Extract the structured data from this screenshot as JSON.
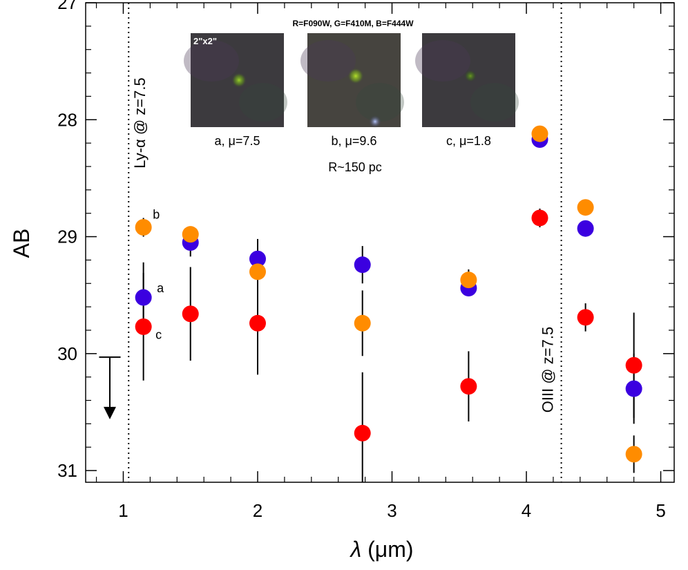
{
  "chart_data": {
    "type": "scatter",
    "xlabel_sym": "λ",
    "xlabel_unit": " (μm)",
    "ylabel": "AB",
    "xlim": [
      0.72,
      5.1
    ],
    "ylim": [
      27,
      31.1
    ],
    "y_inverted": true,
    "xticks": [
      1,
      2,
      3,
      4,
      5
    ],
    "yticks": [
      27,
      28,
      29,
      30,
      31
    ],
    "vlines": [
      {
        "x": 1.04,
        "label": "Ly-α @ z=7.5",
        "style": "dotted"
      },
      {
        "x": 4.26,
        "label": "OIII @ z=7.5",
        "style": "dotted"
      }
    ],
    "upper_limit": {
      "x": 0.9,
      "y": 30.03,
      "xhalf": 0.08,
      "arrow_to": 30.55
    },
    "series": [
      {
        "name": "a",
        "color": "#3b00e0",
        "points": [
          {
            "x": 1.15,
            "y": 29.52,
            "err": 0.3
          },
          {
            "x": 1.5,
            "y": 29.05,
            "err": 0.12
          },
          {
            "x": 2.0,
            "y": 29.19,
            "err": 0.17
          },
          {
            "x": 2.78,
            "y": 29.24,
            "err": 0.16
          },
          {
            "x": 3.57,
            "y": 29.44,
            "err": 0.07
          },
          {
            "x": 4.1,
            "y": 28.17,
            "err": 0.06
          },
          {
            "x": 4.44,
            "y": 28.93,
            "err": 0.06
          },
          {
            "x": 4.8,
            "y": 30.3,
            "err": 0.3
          }
        ]
      },
      {
        "name": "b",
        "color": "#ff8c00",
        "points": [
          {
            "x": 1.15,
            "y": 28.92,
            "err": 0.08
          },
          {
            "x": 1.5,
            "y": 28.98,
            "err": 0.06
          },
          {
            "x": 2.0,
            "y": 29.3,
            "err": 0.14
          },
          {
            "x": 2.78,
            "y": 29.74,
            "err": 0.28
          },
          {
            "x": 3.57,
            "y": 29.37,
            "err": 0.09
          },
          {
            "x": 4.1,
            "y": 28.12,
            "err": 0.06
          },
          {
            "x": 4.44,
            "y": 28.75,
            "err": 0.05
          },
          {
            "x": 4.8,
            "y": 30.86,
            "err": 0.16
          }
        ]
      },
      {
        "name": "c",
        "color": "#ff0000",
        "points": [
          {
            "x": 1.15,
            "y": 29.77,
            "err": 0.46
          },
          {
            "x": 1.5,
            "y": 29.66,
            "err": 0.4
          },
          {
            "x": 2.0,
            "y": 29.74,
            "err": 0.44
          },
          {
            "x": 2.78,
            "y": 30.68,
            "err": 0.52
          },
          {
            "x": 3.57,
            "y": 30.28,
            "err": 0.3
          },
          {
            "x": 4.1,
            "y": 28.84,
            "err": 0.08
          },
          {
            "x": 4.44,
            "y": 29.69,
            "err": 0.12
          },
          {
            "x": 4.8,
            "y": 30.1,
            "err": 0.45
          }
        ]
      }
    ],
    "point_labels": [
      {
        "text": "a",
        "x": 1.25,
        "y": 29.44
      },
      {
        "text": "b",
        "x": 1.22,
        "y": 28.81
      },
      {
        "text": "c",
        "x": 1.24,
        "y": 29.84
      }
    ],
    "inset": {
      "title": "R=F090W, G=F410M, B=F444W",
      "stamp_label": "2\"x2\"",
      "caption": "R~150 pc",
      "stamps": [
        {
          "caption": "a, μ=7.5"
        },
        {
          "caption": "b, μ=9.6"
        },
        {
          "caption": "c, μ=1.8"
        }
      ]
    }
  }
}
